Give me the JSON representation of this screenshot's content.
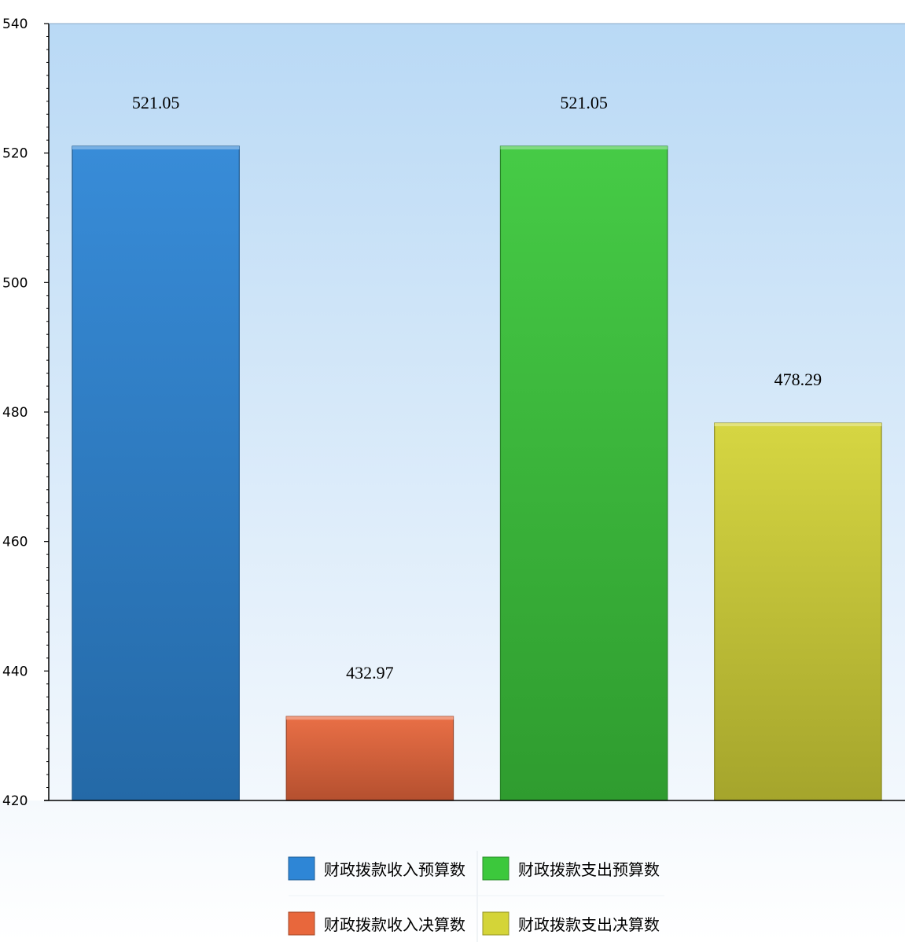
{
  "chart_data": {
    "type": "bar",
    "title": "",
    "xlabel": "",
    "ylabel": "",
    "ylim": [
      420,
      540
    ],
    "y_ticks": [
      420,
      440,
      460,
      480,
      500,
      520,
      540
    ],
    "y_tick_labels": [
      "420",
      "440",
      "460",
      "480",
      "500",
      "520",
      "540"
    ],
    "grid": false,
    "legend_position": "bottom",
    "bars": [
      {
        "name": "财政拨款收入预算数",
        "value": 521.05,
        "label": "521.05",
        "color": "#2e86d6"
      },
      {
        "name": "财政拨款收入决算数",
        "value": 432.97,
        "label": "432.97",
        "color": "#e8673c"
      },
      {
        "name": "财政拨款支出预算数",
        "value": 521.05,
        "label": "521.05",
        "color": "#3cc83c"
      },
      {
        "name": "财政拨款支出决算数",
        "value": 478.29,
        "label": "478.29",
        "color": "#d4d438"
      }
    ],
    "legend": [
      {
        "label": "财政拨款收入预算数",
        "color": "#2e86d6"
      },
      {
        "label": "财政拨款支出预算数",
        "color": "#3cc83c"
      },
      {
        "label": "财政拨款收入决算数",
        "color": "#e8673c"
      },
      {
        "label": "财政拨款支出决算数",
        "color": "#d4d438"
      }
    ]
  }
}
